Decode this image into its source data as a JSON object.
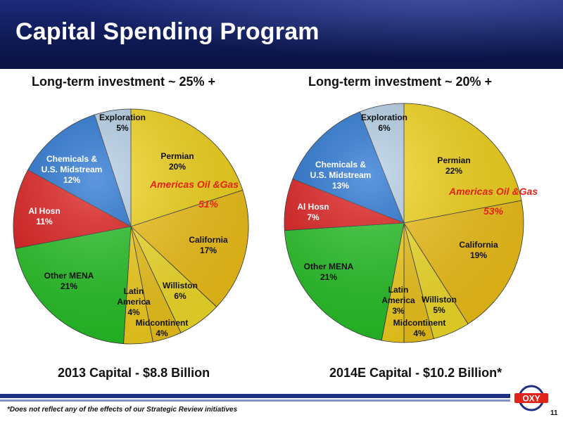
{
  "title": "Capital Spending Program",
  "footnote": "*Does not reflect any of the effects of our Strategic Review initiatives",
  "page_number": "11",
  "logo_text": "OXY",
  "chart_data": [
    {
      "type": "pie",
      "title": "Long-term investment ~ 25% +",
      "caption": "2013 Capital - $8.8 Billion",
      "slices": [
        {
          "label": "Permian",
          "value": 20,
          "display": "20%",
          "color": "#f7d81a"
        },
        {
          "label": "California",
          "value": 17,
          "display": "17%",
          "color": "#f5c519"
        },
        {
          "label": "Williston",
          "value": 6,
          "display": "6%",
          "color": "#f7e22a"
        },
        {
          "label": "Midcontinent",
          "value": 4,
          "display": "4%",
          "color": "#f2c81a"
        },
        {
          "label": "Latin America",
          "value": 4,
          "display": "4%",
          "color": "#f8d31c"
        },
        {
          "label": "Other MENA",
          "value": 21,
          "display": "21%",
          "color": "#25c425"
        },
        {
          "label": "Al Hosn",
          "value": 11,
          "display": "11%",
          "color": "#e01818"
        },
        {
          "label": "Chemicals & U.S. Midstream",
          "value": 12,
          "display": "12%",
          "color": "#1f6fd1"
        },
        {
          "label": "Exploration",
          "value": 5,
          "display": "5%",
          "color": "#b4cfe8"
        }
      ],
      "group_annotation": {
        "label": "Americas Oil &Gas",
        "value": "51%",
        "color": "#e2231a"
      }
    },
    {
      "type": "pie",
      "title": "Long-term investment ~ 20% +",
      "caption": "2014E Capital - $10.2 Billion*",
      "slices": [
        {
          "label": "Permian",
          "value": 22,
          "display": "22%",
          "color": "#f7d81a"
        },
        {
          "label": "California",
          "value": 19,
          "display": "19%",
          "color": "#f5c519"
        },
        {
          "label": "Williston",
          "value": 5,
          "display": "5%",
          "color": "#f7e22a"
        },
        {
          "label": "Midcontinent",
          "value": 4,
          "display": "4%",
          "color": "#f2c81a"
        },
        {
          "label": "Latin America",
          "value": 3,
          "display": "3%",
          "color": "#f8d31c"
        },
        {
          "label": "Other MENA",
          "value": 21,
          "display": "21%",
          "color": "#25c425"
        },
        {
          "label": "Al Hosn",
          "value": 7,
          "display": "7%",
          "color": "#e01818"
        },
        {
          "label": "Chemicals & U.S. Midstream",
          "value": 13,
          "display": "13%",
          "color": "#1f6fd1"
        },
        {
          "label": "Exploration",
          "value": 6,
          "display": "6%",
          "color": "#b4cfe8"
        }
      ],
      "group_annotation": {
        "label": "Americas Oil &Gas",
        "value": "53%",
        "color": "#e2231a"
      }
    }
  ]
}
